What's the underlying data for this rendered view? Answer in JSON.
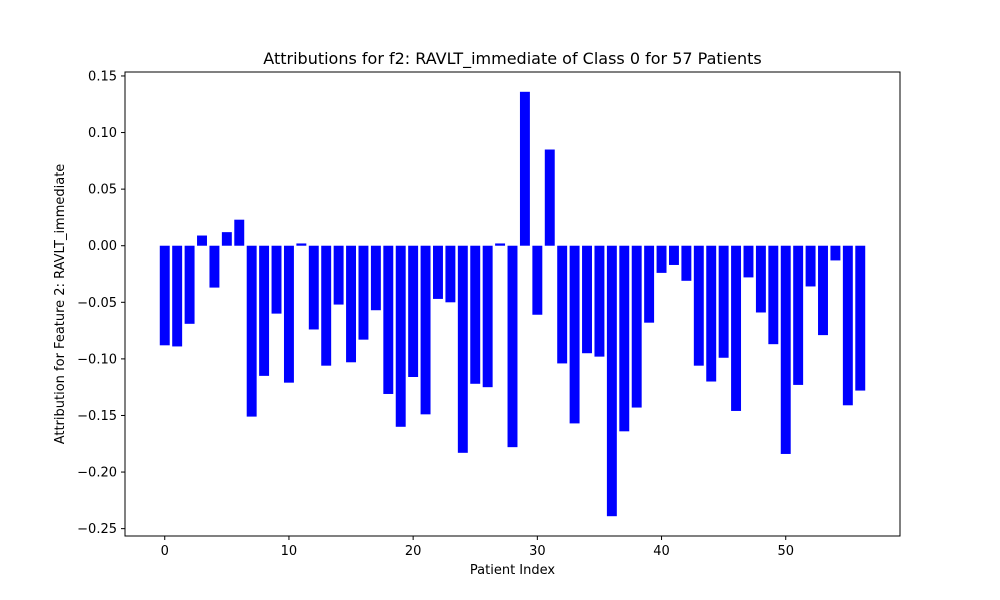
{
  "chart_data": {
    "type": "bar",
    "title": "Attributions for f2: RAVLT_immediate of Class 0 for 57 Patients",
    "xlabel": "Patient Index",
    "ylabel": "Attribution for Feature 2: RAVLT_immediate",
    "bar_color": "#0000ff",
    "xlim": [
      -3.2,
      59.2
    ],
    "ylim": [
      -0.2565,
      0.1535
    ],
    "x_ticks": [
      0,
      10,
      20,
      30,
      40,
      50
    ],
    "x_tick_labels": [
      "0",
      "10",
      "20",
      "30",
      "40",
      "50"
    ],
    "y_ticks": [
      0.15,
      0.1,
      0.05,
      0.0,
      -0.05,
      -0.1,
      -0.15,
      -0.2,
      -0.25
    ],
    "y_tick_labels": [
      "0.15",
      "0.10",
      "0.05",
      "0.00",
      "−0.05",
      "−0.10",
      "−0.15",
      "−0.20",
      "−0.25"
    ],
    "grid": false,
    "x": [
      0,
      1,
      2,
      3,
      4,
      5,
      6,
      7,
      8,
      9,
      10,
      11,
      12,
      13,
      14,
      15,
      16,
      17,
      18,
      19,
      20,
      21,
      22,
      23,
      24,
      25,
      26,
      27,
      28,
      29,
      30,
      31,
      32,
      33,
      34,
      35,
      36,
      37,
      38,
      39,
      40,
      41,
      42,
      43,
      44,
      45,
      46,
      47,
      48,
      49,
      50,
      51,
      52,
      53,
      54,
      55,
      56
    ],
    "values": [
      -0.088,
      -0.089,
      -0.069,
      0.009,
      -0.037,
      0.012,
      0.023,
      -0.151,
      -0.115,
      -0.06,
      -0.121,
      0.002,
      -0.074,
      -0.106,
      -0.052,
      -0.103,
      -0.083,
      -0.057,
      -0.131,
      -0.16,
      -0.116,
      -0.149,
      -0.047,
      -0.05,
      -0.183,
      -0.122,
      -0.125,
      0.002,
      -0.178,
      0.136,
      -0.061,
      0.085,
      -0.104,
      -0.157,
      -0.095,
      -0.098,
      -0.239,
      -0.164,
      -0.143,
      -0.068,
      -0.024,
      -0.017,
      -0.031,
      -0.106,
      -0.12,
      -0.099,
      -0.146,
      -0.028,
      -0.059,
      -0.087,
      -0.184,
      -0.123,
      -0.036,
      -0.079,
      -0.013,
      -0.141,
      -0.128
    ]
  }
}
